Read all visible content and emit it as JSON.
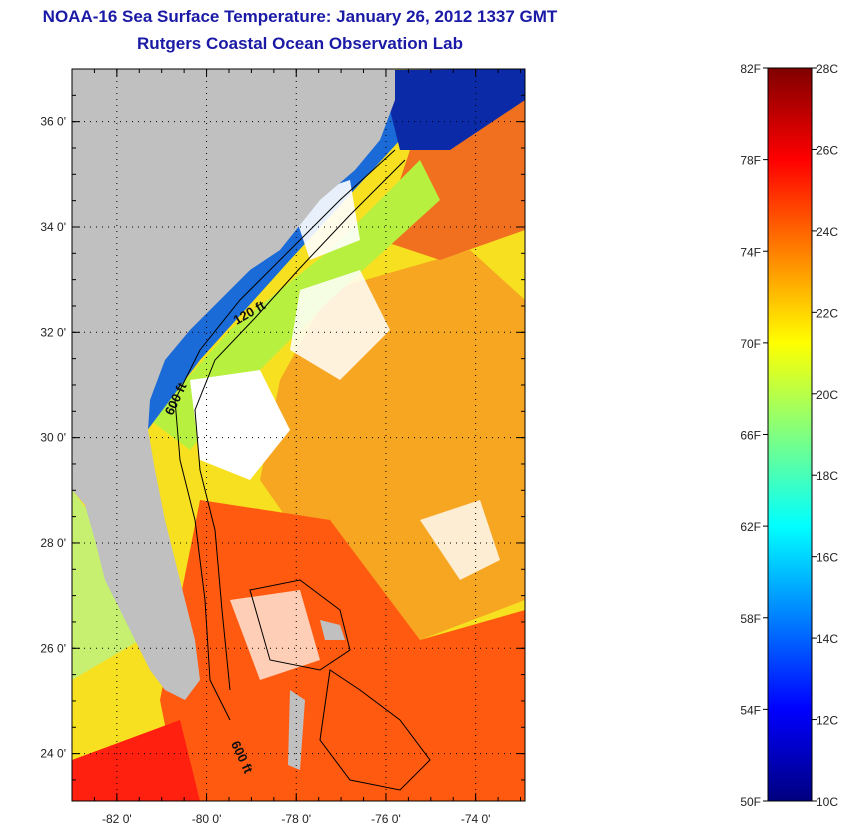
{
  "title_line1": "NOAA-16 Sea Surface Temperature:  January 26, 2012 1337 GMT",
  "title_line2": "Rutgers Coastal Ocean Observation Lab",
  "map": {
    "lon_range": [
      -83.0,
      -72.9
    ],
    "lat_range": [
      23.1,
      37.0
    ],
    "lon_ticks": [
      {
        "value": -82,
        "label": "-82 0'"
      },
      {
        "value": -80,
        "label": "-80 0'"
      },
      {
        "value": -78,
        "label": "-78 0'"
      },
      {
        "value": -76,
        "label": "-76 0'"
      },
      {
        "value": -74,
        "label": "-74 0'"
      }
    ],
    "lat_ticks": [
      {
        "value": 36,
        "label": "36 0'"
      },
      {
        "value": 34,
        "label": "34 0'"
      },
      {
        "value": 32,
        "label": "32 0'"
      },
      {
        "value": 30,
        "label": "30 0'"
      },
      {
        "value": 28,
        "label": "28 0'"
      },
      {
        "value": 26,
        "label": "26 0'"
      },
      {
        "value": 24,
        "label": "24 0'"
      }
    ],
    "contour_labels": [
      {
        "text": "120 ft",
        "lon": -79.0,
        "lat": 32.3,
        "rotate": -30
      },
      {
        "text": "600 ft",
        "lon": -80.6,
        "lat": 30.7,
        "rotate": -65
      },
      {
        "text": "600 ft",
        "lon": -79.3,
        "lat": 23.9,
        "rotate": 65
      }
    ],
    "land_color": "#c0c0c0",
    "ocean_warm_color": "#ff6600",
    "ocean_cold_color": "#0033cc"
  },
  "colorbar": {
    "f_labels": [
      "82F",
      "78F",
      "74F",
      "70F",
      "66F",
      "62F",
      "58F",
      "54F",
      "50F"
    ],
    "c_labels": [
      "28C",
      "26C",
      "24C",
      "22C",
      "20C",
      "18C",
      "16C",
      "14C",
      "12C",
      "10C"
    ],
    "colors": [
      "#00007f",
      "#0000ff",
      "#0080ff",
      "#00ffff",
      "#80ff80",
      "#ffff00",
      "#ff8000",
      "#ff0000",
      "#7f0000"
    ]
  }
}
